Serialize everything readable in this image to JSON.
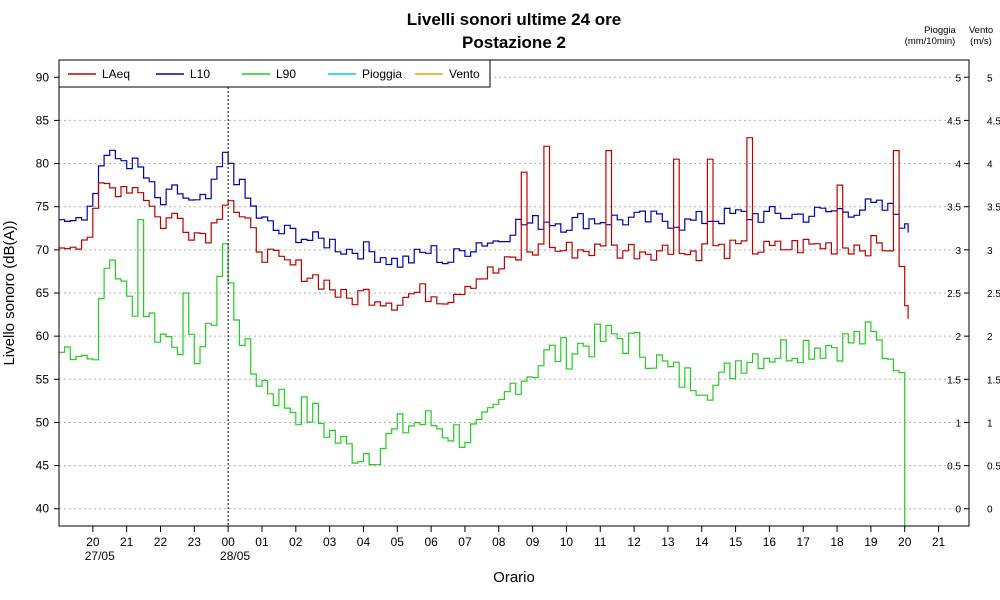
{
  "chart_data": {
    "type": "line",
    "title": "Livelli sonori ultime 24 ore",
    "subtitle": "Postazione 2",
    "xlabel": "Orario",
    "ylabel": "Livello sonoro (dB(A))",
    "right_axis_label_rain": "Pioggia",
    "right_axis_unit_rain": "(mm/10min)",
    "right_axis_label_wind": "Vento",
    "right_axis_unit_wind": "(m/s)",
    "ylim": [
      38,
      92
    ],
    "yticks": [
      "40",
      "45",
      "50",
      "55",
      "60",
      "65",
      "70",
      "75",
      "80",
      "85",
      "90"
    ],
    "y2lim": [
      0,
      5
    ],
    "y2ticks": [
      "0",
      "0.5",
      "1",
      "1.5",
      "2",
      "2.5",
      "3",
      "3.5",
      "4",
      "4.5",
      "5"
    ],
    "xlim": [
      19,
      45.9
    ],
    "xticks": [
      {
        "x": 20,
        "label": "20"
      },
      {
        "x": 21,
        "label": "21"
      },
      {
        "x": 22,
        "label": "22"
      },
      {
        "x": 23,
        "label": "23"
      },
      {
        "x": 24,
        "label": "00"
      },
      {
        "x": 25,
        "label": "01"
      },
      {
        "x": 26,
        "label": "02"
      },
      {
        "x": 27,
        "label": "03"
      },
      {
        "x": 28,
        "label": "04"
      },
      {
        "x": 29,
        "label": "05"
      },
      {
        "x": 30,
        "label": "06"
      },
      {
        "x": 31,
        "label": "07"
      },
      {
        "x": 32,
        "label": "08"
      },
      {
        "x": 33,
        "label": "09"
      },
      {
        "x": 34,
        "label": "10"
      },
      {
        "x": 35,
        "label": "11"
      },
      {
        "x": 36,
        "label": "12"
      },
      {
        "x": 37,
        "label": "13"
      },
      {
        "x": 38,
        "label": "14"
      },
      {
        "x": 39,
        "label": "15"
      },
      {
        "x": 40,
        "label": "16"
      },
      {
        "x": 41,
        "label": "17"
      },
      {
        "x": 42,
        "label": "18"
      },
      {
        "x": 43,
        "label": "19"
      },
      {
        "x": 44,
        "label": "20"
      },
      {
        "x": 45,
        "label": "21"
      }
    ],
    "date_labels": [
      {
        "x": 20.5,
        "label": "27/05"
      },
      {
        "x": 24.5,
        "label": "28/05"
      }
    ],
    "midnight_marker_x": 24,
    "grid": "horizontal-dotted",
    "legend_placement": "top-left",
    "series_points": {
      "LAeq": [
        [
          19,
          70.5
        ],
        [
          19.5,
          71
        ],
        [
          20,
          72
        ],
        [
          20.3,
          78
        ],
        [
          20.5,
          77
        ],
        [
          21,
          77.5
        ],
        [
          21.5,
          77
        ],
        [
          22,
          73
        ],
        [
          22.5,
          74
        ],
        [
          23,
          72
        ],
        [
          23.5,
          72
        ],
        [
          23.8,
          75
        ],
        [
          24,
          77
        ],
        [
          24.3,
          74
        ],
        [
          24.7,
          72
        ],
        [
          25,
          70
        ],
        [
          25.5,
          68.5
        ],
        [
          26,
          68
        ],
        [
          26.5,
          67
        ],
        [
          27,
          66
        ],
        [
          27.5,
          64
        ],
        [
          28,
          65
        ],
        [
          28.5,
          64.5
        ],
        [
          29,
          64
        ],
        [
          29.5,
          65
        ],
        [
          30,
          65
        ],
        [
          30.5,
          64.5
        ],
        [
          31,
          66
        ],
        [
          31.5,
          67
        ],
        [
          32,
          67.5
        ],
        [
          32.5,
          69
        ],
        [
          33,
          70
        ],
        [
          33.5,
          70
        ],
        [
          34,
          70
        ],
        [
          34.5,
          70
        ],
        [
          35,
          70
        ],
        [
          35.5,
          70
        ],
        [
          36,
          70
        ],
        [
          37,
          70
        ],
        [
          37.5,
          69.5
        ],
        [
          38,
          70
        ],
        [
          39,
          70
        ],
        [
          40,
          70
        ],
        [
          41,
          70.5
        ],
        [
          42,
          70.5
        ],
        [
          43,
          70.5
        ],
        [
          43.7,
          70.5
        ],
        [
          44,
          68
        ],
        [
          44.1,
          62
        ]
      ],
      "L10": [
        [
          19,
          74.5
        ],
        [
          19.5,
          74
        ],
        [
          20,
          75
        ],
        [
          20.3,
          81
        ],
        [
          20.7,
          80.5
        ],
        [
          21,
          80.5
        ],
        [
          21.5,
          79
        ],
        [
          22,
          75
        ],
        [
          22.5,
          77
        ],
        [
          23,
          75
        ],
        [
          23.5,
          76
        ],
        [
          23.8,
          80
        ],
        [
          24,
          81
        ],
        [
          24.3,
          78
        ],
        [
          24.7,
          75
        ],
        [
          25,
          73.5
        ],
        [
          25.5,
          72
        ],
        [
          26,
          72
        ],
        [
          26.5,
          71
        ],
        [
          27,
          71
        ],
        [
          27.5,
          70
        ],
        [
          28,
          70
        ],
        [
          28.5,
          69.5
        ],
        [
          29,
          68.5
        ],
        [
          29.5,
          69
        ],
        [
          30,
          70
        ],
        [
          30.5,
          68.5
        ],
        [
          31,
          70
        ],
        [
          31.5,
          71
        ],
        [
          32,
          71
        ],
        [
          32.5,
          73
        ],
        [
          33,
          73
        ],
        [
          33.5,
          73.5
        ],
        [
          34,
          73
        ],
        [
          34.5,
          73.5
        ],
        [
          35,
          73.5
        ],
        [
          35.5,
          73.5
        ],
        [
          36,
          73.5
        ],
        [
          37,
          73.5
        ],
        [
          37.5,
          73
        ],
        [
          38,
          73.5
        ],
        [
          39,
          74
        ],
        [
          40,
          74
        ],
        [
          41,
          74
        ],
        [
          42,
          74.5
        ],
        [
          43,
          75
        ],
        [
          43.7,
          74.5
        ],
        [
          44,
          73
        ],
        [
          44.1,
          72
        ]
      ],
      "L90": [
        [
          19,
          58
        ],
        [
          19.5,
          59
        ],
        [
          20,
          57
        ],
        [
          20.3,
          64
        ],
        [
          20.5,
          70
        ],
        [
          20.8,
          67
        ],
        [
          21,
          64
        ],
        [
          21.5,
          64
        ],
        [
          22,
          60
        ],
        [
          22.5,
          60
        ],
        [
          23,
          58
        ],
        [
          23.5,
          60
        ],
        [
          23.7,
          66
        ],
        [
          23.9,
          71
        ],
        [
          24.1,
          65
        ],
        [
          24.3,
          62
        ],
        [
          24.7,
          56
        ],
        [
          25,
          55
        ],
        [
          25.5,
          53
        ],
        [
          26,
          51.5
        ],
        [
          26.5,
          51
        ],
        [
          27,
          49
        ],
        [
          27.5,
          47
        ],
        [
          28,
          46.5
        ],
        [
          28.5,
          47
        ],
        [
          29,
          49
        ],
        [
          29.5,
          50
        ],
        [
          30,
          50
        ],
        [
          30.5,
          49
        ],
        [
          31,
          48.5
        ],
        [
          31.5,
          49
        ],
        [
          32,
          51
        ],
        [
          32.5,
          55
        ],
        [
          33,
          56
        ],
        [
          33.5,
          58
        ],
        [
          34,
          58
        ],
        [
          34.5,
          59
        ],
        [
          35,
          59.5
        ],
        [
          35.5,
          60
        ],
        [
          36,
          59
        ],
        [
          36.5,
          58
        ],
        [
          37,
          56
        ],
        [
          37.5,
          55
        ],
        [
          38,
          55
        ],
        [
          38.5,
          54
        ],
        [
          39,
          57
        ],
        [
          39.5,
          58
        ],
        [
          40,
          58
        ],
        [
          41,
          59
        ],
        [
          42,
          59
        ],
        [
          43,
          60
        ],
        [
          43.5,
          58
        ],
        [
          43.9,
          57.5
        ],
        [
          44,
          38
        ]
      ],
      "Pioggia": [],
      "Vento": []
    },
    "series": [
      {
        "name": "LAeq",
        "color": "#c00000",
        "amp": 1.2,
        "spikes": [
          [
            32.65,
            79
          ],
          [
            33.3,
            82
          ],
          [
            35.2,
            81.5
          ],
          [
            37.2,
            80.5
          ],
          [
            38.2,
            80.5
          ],
          [
            39.3,
            83
          ],
          [
            42,
            77.5
          ],
          [
            43.6,
            81.5
          ]
        ]
      },
      {
        "name": "L10",
        "color": "#0000b0",
        "amp": 1.1,
        "spikes": []
      },
      {
        "name": "L90",
        "color": "#22cc22",
        "amp": 2.0,
        "spikes": [
          [
            21.3,
            73.5
          ],
          [
            22.7,
            65
          ]
        ]
      },
      {
        "name": "Pioggia",
        "color": "#00ccee",
        "amp": 0,
        "spikes": []
      },
      {
        "name": "Vento",
        "color": "#ddaa00",
        "amp": 0,
        "spikes": []
      }
    ]
  }
}
